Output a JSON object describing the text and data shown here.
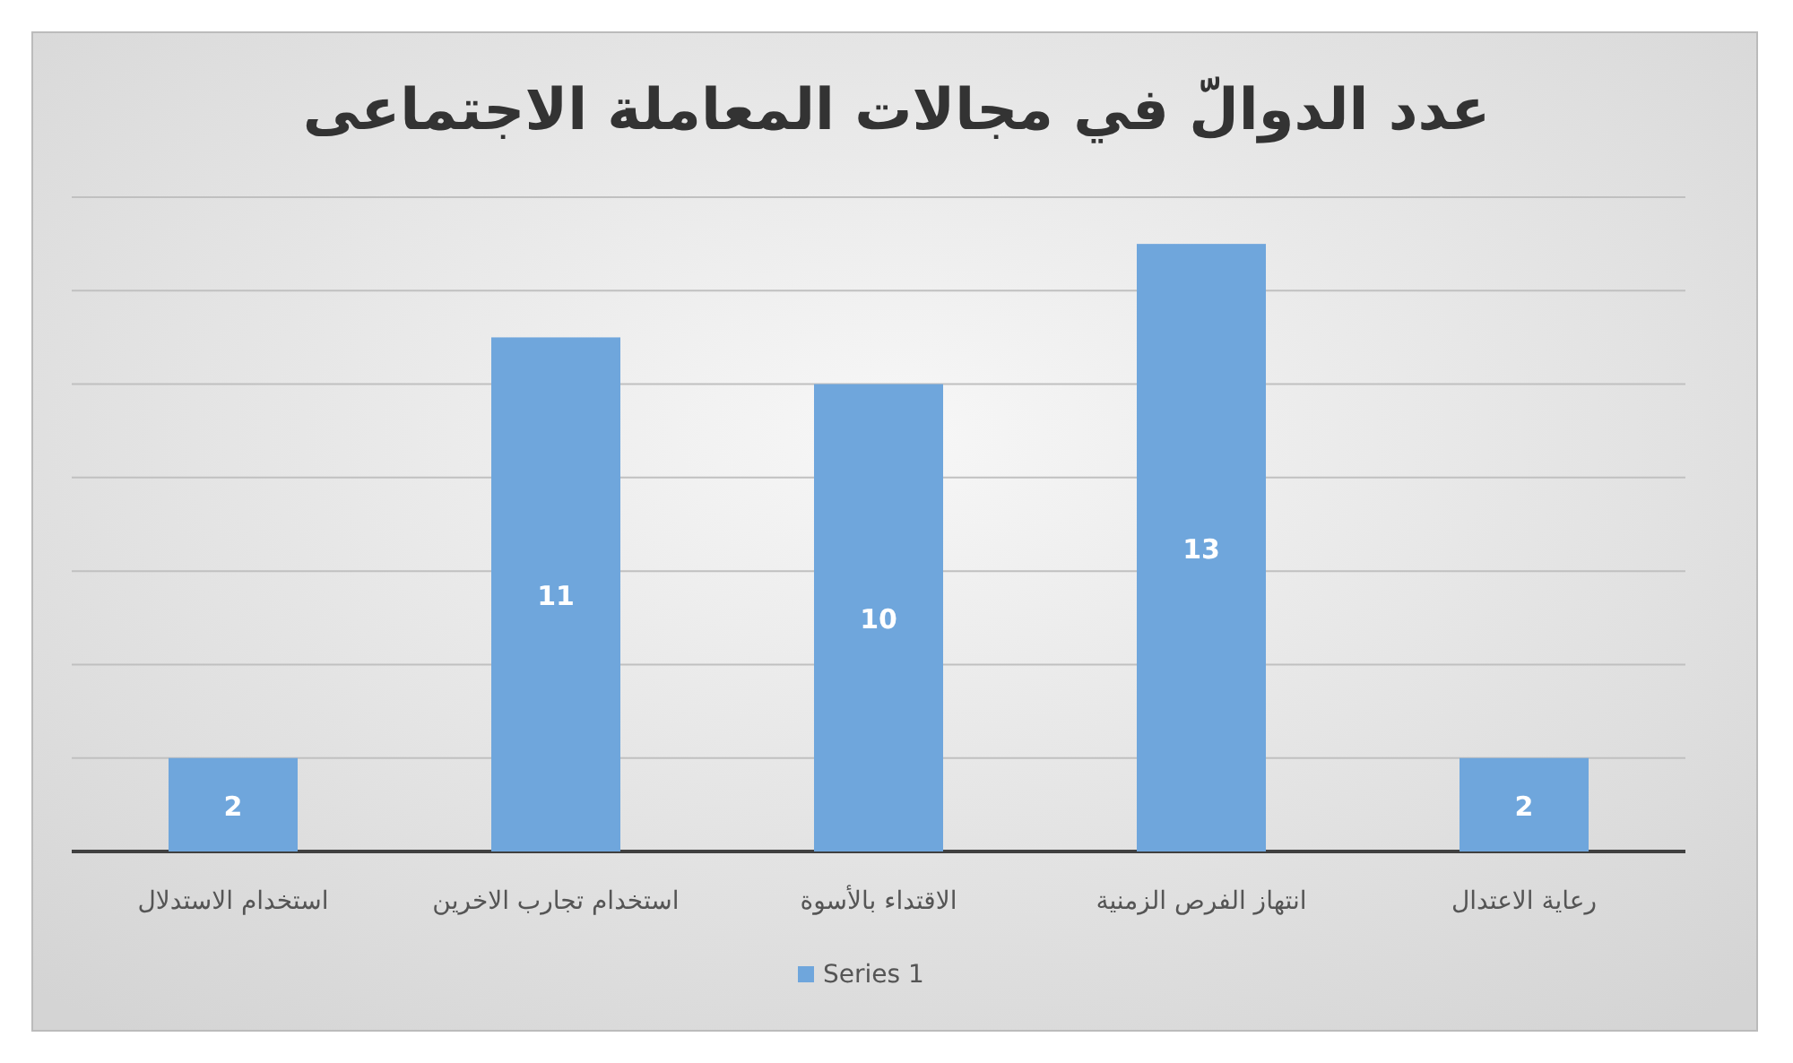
{
  "chart_data": {
    "type": "bar",
    "title": "عدد الدوالّ في مجالات المعاملة الاجتماعى",
    "categories": [
      "استخدام الاستدلال",
      "استخدام تجارب الاخرين",
      "الاقتداء بالأسوة",
      "انتهاز الفرص الزمنية",
      "رعاية الاعتدال"
    ],
    "series": [
      {
        "name": "Series 1",
        "color": "#6fa6dc",
        "values": [
          2,
          11,
          10,
          13,
          2
        ]
      }
    ],
    "ylim": [
      0,
      14
    ],
    "yticks": [
      {
        "value": 0,
        "label": null
      },
      {
        "value": 2,
        "label": null
      },
      {
        "value": 4,
        "label": null
      },
      {
        "value": 6,
        "label": null
      },
      {
        "value": 8,
        "label": null
      },
      {
        "value": 10,
        "label": null
      },
      {
        "value": 12,
        "label": null
      },
      {
        "value": 14,
        "label": null
      }
    ],
    "tick_labels": "x",
    "grid": "y",
    "data_labels": true,
    "legend": "bottom"
  }
}
